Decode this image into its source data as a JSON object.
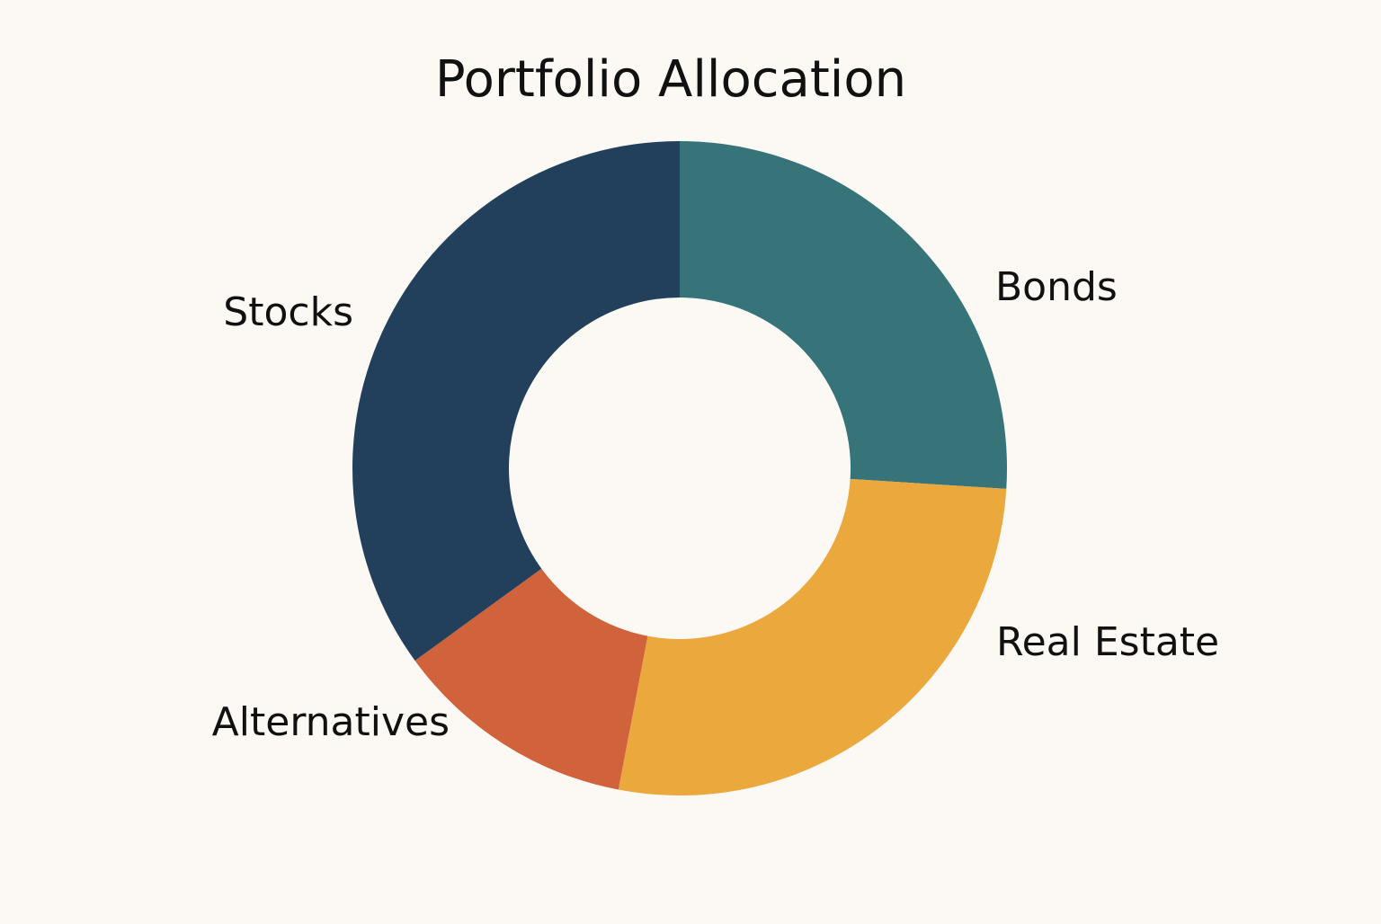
{
  "chart_data": {
    "type": "donut",
    "title": "Portfolio Allocation",
    "categories": [
      "Bonds",
      "Real Estate",
      "Alternatives",
      "Stocks"
    ],
    "values": [
      26,
      27,
      12,
      35
    ],
    "colors": [
      "#37747a",
      "#eba83d",
      "#d0623c",
      "#22405c"
    ]
  }
}
